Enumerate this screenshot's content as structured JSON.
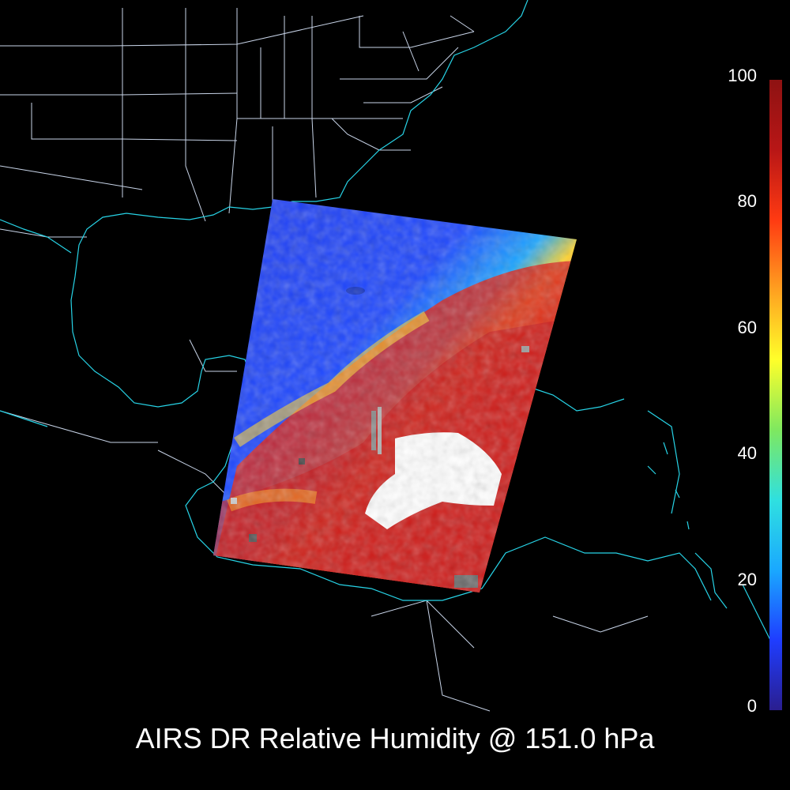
{
  "title": "AIRS DR Relative Humidity @ 151.0 hPa",
  "colorbar": {
    "ticks": [
      "100",
      "80",
      "60",
      "40",
      "20",
      "0"
    ],
    "min": 0,
    "max": 100,
    "colors": [
      "#2a1e8f",
      "#1f3dff",
      "#1aa8ff",
      "#2fe0e0",
      "#7ee860",
      "#ffff2a",
      "#ffa020",
      "#ff3a12",
      "#b81616",
      "#8e1212"
    ]
  },
  "colors": {
    "background": "#000000",
    "coastline": "#27d3e6",
    "borders": "#c8d4e8",
    "no_data": "#ffffff",
    "missing": "#8a8a8a"
  }
}
